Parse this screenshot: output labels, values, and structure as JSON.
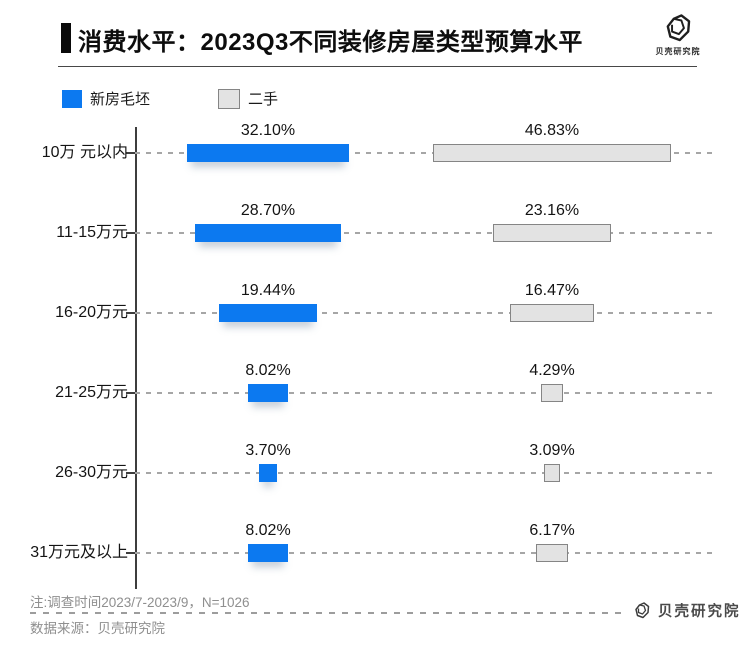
{
  "header": {
    "title": "消费水平：2023Q3不同装修房屋类型预算水平",
    "logo_text_top": "贝壳研究院"
  },
  "legend": [
    {
      "label": "新房毛坯",
      "color": "#0c79f0"
    },
    {
      "label": "二手",
      "color": "#e3e3e3",
      "border": "#858585"
    }
  ],
  "chart_data": {
    "type": "bar",
    "orientation": "horizontal-centered",
    "title": "消费水平：2023Q3不同装修房屋类型预算水平",
    "value_suffix": "%",
    "value_range": [
      0,
      50
    ],
    "grid": "dashed-row-lines",
    "legend_position": "top-left",
    "categories": [
      "10万 元以内",
      "11-15万元",
      "16-20万元",
      "21-25万元",
      "26-30万元",
      "31万元及以上"
    ],
    "series": [
      {
        "name": "新房毛坯",
        "color": "#0c79f0",
        "values": [
          32.1,
          28.7,
          19.44,
          8.02,
          3.7,
          8.02
        ],
        "labels": [
          "32.10%",
          "28.70%",
          "19.44%",
          "8.02%",
          "3.70%",
          "8.02%"
        ]
      },
      {
        "name": "二手",
        "color": "#e3e3e3",
        "border": "#858585",
        "values": [
          46.83,
          23.16,
          16.47,
          4.29,
          3.09,
          6.17
        ],
        "labels": [
          "46.83%",
          "23.16%",
          "16.47%",
          "4.29%",
          "3.09%",
          "6.17%"
        ]
      }
    ]
  },
  "footer": {
    "note": "注:调查时间2023/7-2023/9，N=1026",
    "source": "数据来源：贝壳研究院",
    "logo_text_bottom": "贝壳研究院"
  }
}
